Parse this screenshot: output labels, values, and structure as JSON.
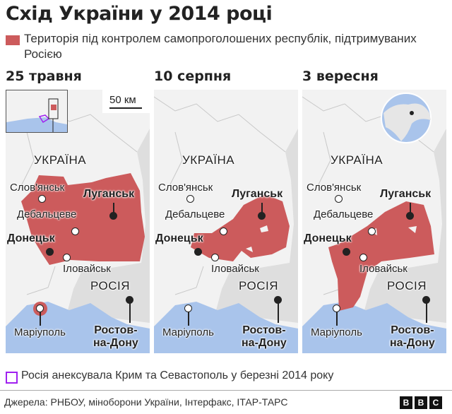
{
  "title": "Схід України у 2014 році",
  "legend": {
    "controlled": "Територія під контролем самопроголошених республік, підтримуваних Росією",
    "controlled_color": "#cc5b5c",
    "crimea": "Росія анексувала Крим та Севастополь у березні 2014 року",
    "crimea_color": "#a020f0"
  },
  "scale": "50 км",
  "labels": {
    "ukraine": "УКРАЇНА",
    "russia": "РОСІЯ",
    "sloviansk": "Слов'янськ",
    "luhansk": "Луганськ",
    "debaltseve": "Дебальцеве",
    "donetsk": "Донецьк",
    "ilovaisk": "Іловайськ",
    "mariupol": "Маріуполь",
    "rostov1": "Ростов-",
    "rostov2": "на-Дону"
  },
  "panels": [
    {
      "date": "25 травня"
    },
    {
      "date": "10 серпня"
    },
    {
      "date": "3 вересня"
    }
  ],
  "colors": {
    "sea": "#a9c4eb",
    "ukraine_land": "#f2f2f2",
    "russia_land": "#dedede"
  },
  "source": "Джерела: РНБОУ, міноборони України, Інтерфакс, ІТАР-ТАРС",
  "brand": [
    "B",
    "B",
    "C"
  ]
}
